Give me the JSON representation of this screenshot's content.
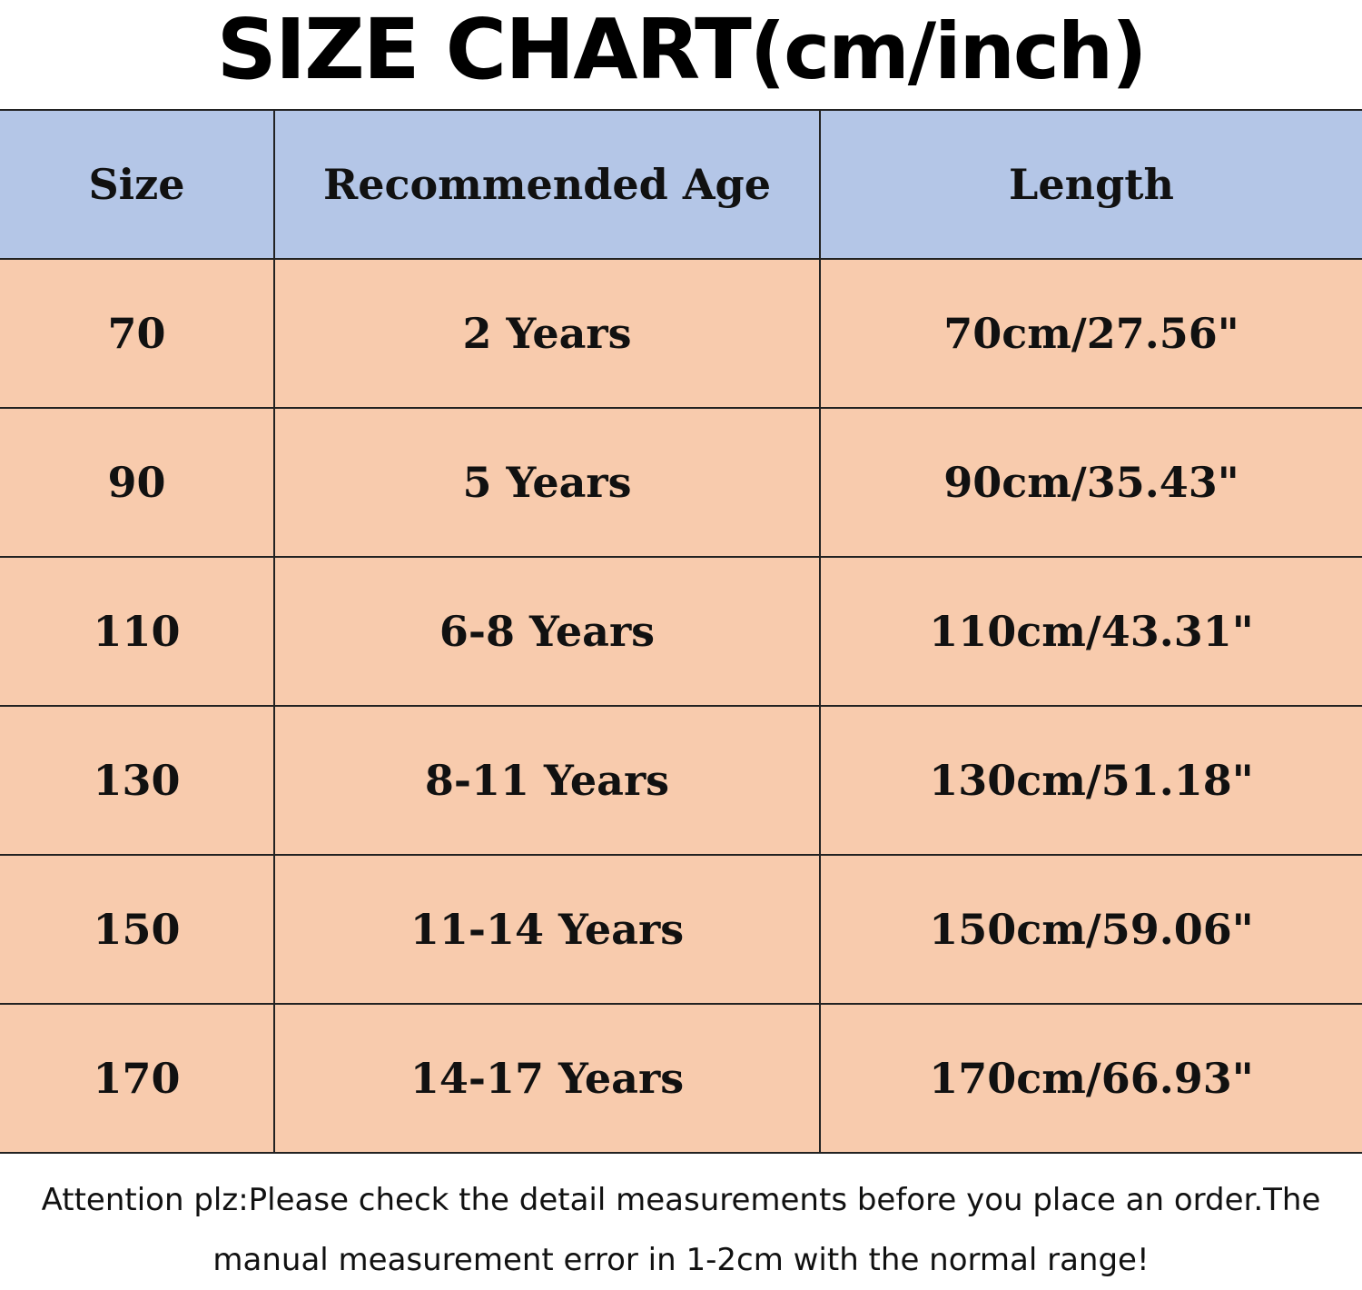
{
  "title": {
    "main": "SIZE CHART",
    "unit": "(cm/inch)"
  },
  "colors": {
    "header_bg": "#b4c6e7",
    "row_bg": "#f8cbad"
  },
  "table": {
    "headers": [
      "Size",
      "Recommended Age",
      "Length"
    ],
    "rows": [
      [
        "70",
        "2 Years",
        "70cm/27.56\""
      ],
      [
        "90",
        "5 Years",
        "90cm/35.43\""
      ],
      [
        "110",
        "6-8 Years",
        "110cm/43.31\""
      ],
      [
        "130",
        "8-11 Years",
        "130cm/51.18\""
      ],
      [
        "150",
        "11-14 Years",
        "150cm/59.06\""
      ],
      [
        "170",
        "14-17 Years",
        "170cm/66.93\""
      ]
    ]
  },
  "footer": {
    "line1": "Attention plz:Please check the detail measurements before you place an order.The",
    "line2": "manual measurement error in 1-2cm with the normal range!"
  }
}
